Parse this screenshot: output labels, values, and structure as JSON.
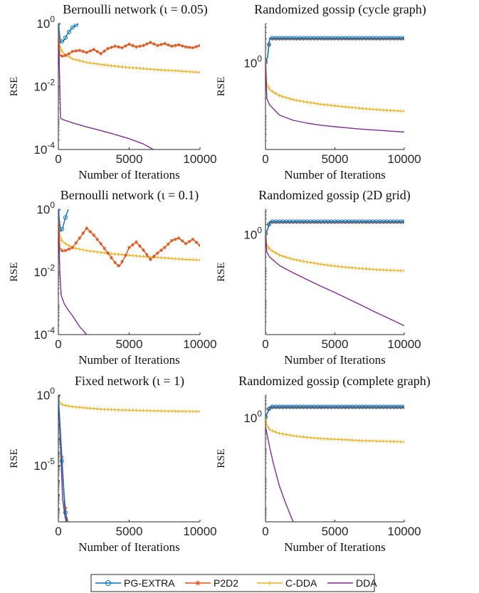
{
  "colors": {
    "PG-EXTRA": "#0072BD",
    "P2D2": "#D95319",
    "C-DDA": "#EDB120",
    "DDA": "#7E2F8E",
    "axis": "#262626"
  },
  "legend": {
    "entries": [
      {
        "name": "PG-EXTRA",
        "marker": "circle"
      },
      {
        "name": "P2D2",
        "marker": "asterisk"
      },
      {
        "name": "C-DDA",
        "marker": "plus"
      },
      {
        "name": "DDA",
        "marker": "none"
      }
    ]
  },
  "chart_data": [
    {
      "type": "line",
      "title": "Bernoulli network (ι = 0.05)",
      "xlabel": "Number of Iterations",
      "ylabel": "RSE",
      "yscale": "log",
      "xlim": [
        0,
        10000
      ],
      "ylim": [
        0.0001,
        1
      ],
      "xticks": [
        "0",
        "5000",
        "10000"
      ],
      "yticks": [
        {
          "value": 1,
          "base": "10",
          "exp": "0"
        },
        {
          "value": 0.01,
          "base": "10",
          "exp": "-2"
        },
        {
          "value": 0.0001,
          "base": "10",
          "exp": "-4"
        }
      ],
      "series": [
        {
          "name": "PG-EXTRA",
          "x": [
            0,
            150,
            400,
            700,
            1000,
            1400
          ],
          "y": [
            1.0,
            0.25,
            0.3,
            0.5,
            0.75,
            1.0
          ]
        },
        {
          "name": "P2D2",
          "x": [
            0,
            100,
            300,
            600,
            1000,
            1500,
            2000,
            2500,
            3000,
            3500,
            4000,
            4500,
            5000,
            5500,
            6000,
            6500,
            7000,
            7500,
            8000,
            8500,
            9000,
            9500,
            10000
          ],
          "y": [
            1.0,
            0.1,
            0.09,
            0.1,
            0.13,
            0.14,
            0.12,
            0.15,
            0.11,
            0.16,
            0.19,
            0.17,
            0.22,
            0.18,
            0.2,
            0.25,
            0.2,
            0.23,
            0.19,
            0.21,
            0.18,
            0.17,
            0.2
          ]
        },
        {
          "name": "C-DDA",
          "x": [
            0,
            100,
            300,
            1000,
            2000,
            3000,
            4000,
            5000,
            6000,
            7000,
            8000,
            9000,
            10000
          ],
          "y": [
            1.0,
            0.2,
            0.12,
            0.075,
            0.058,
            0.05,
            0.044,
            0.04,
            0.037,
            0.034,
            0.032,
            0.03,
            0.028
          ]
        },
        {
          "name": "DDA",
          "x": [
            0,
            150,
            300,
            1000,
            2000,
            3000,
            4000,
            5000,
            6000,
            6700
          ],
          "y": [
            1.0,
            0.001,
            0.0009,
            0.0007,
            0.00052,
            0.0004,
            0.0003,
            0.00022,
            0.00015,
            0.0001
          ]
        }
      ]
    },
    {
      "type": "line",
      "title": "Randomized gossip (cycle graph)",
      "xlabel": "Number of Iterations",
      "ylabel": "RSE",
      "yscale": "log",
      "xlim": [
        0,
        10000
      ],
      "ylim": [
        0.02,
        6
      ],
      "xticks": [
        "0",
        "5000",
        "10000"
      ],
      "yticks": [
        {
          "value": 1,
          "base": "10",
          "exp": "0"
        }
      ],
      "series": [
        {
          "name": "PG-EXTRA",
          "x": [
            0,
            150,
            300,
            600,
            1000,
            2000,
            3000,
            4000,
            5000,
            6000,
            7000,
            8000,
            9000,
            10000
          ],
          "y": [
            1.1,
            1.3,
            3.1,
            3.1,
            3.1,
            3.1,
            3.1,
            3.1,
            3.1,
            3.1,
            3.1,
            3.1,
            3.1,
            3.1
          ]
        },
        {
          "name": "P2D2",
          "x": [
            0,
            150,
            300,
            600,
            1000,
            2000,
            3000,
            4000,
            5000,
            6000,
            7000,
            8000,
            9000,
            10000
          ],
          "y": [
            1.1,
            1.3,
            3.0,
            3.0,
            3.0,
            3.0,
            3.0,
            3.0,
            3.0,
            3.0,
            3.0,
            3.0,
            3.0,
            3.0
          ]
        },
        {
          "name": "C-DDA",
          "x": [
            0,
            100,
            300,
            1000,
            2000,
            3000,
            4000,
            5000,
            6000,
            7000,
            8000,
            9000,
            10000
          ],
          "y": [
            1.1,
            0.4,
            0.3,
            0.23,
            0.19,
            0.17,
            0.155,
            0.145,
            0.135,
            0.128,
            0.122,
            0.117,
            0.113
          ]
        },
        {
          "name": "DDA",
          "x": [
            0,
            100,
            300,
            1000,
            2000,
            3000,
            4000,
            5000,
            6000,
            7000,
            8000,
            9000,
            10000
          ],
          "y": [
            1.1,
            0.2,
            0.15,
            0.095,
            0.075,
            0.066,
            0.06,
            0.056,
            0.053,
            0.05,
            0.048,
            0.046,
            0.044
          ]
        }
      ]
    },
    {
      "type": "line",
      "title": "Bernoulli network (ι = 0.1)",
      "xlabel": "Number of Iterations",
      "ylabel": "RSE",
      "yscale": "log",
      "xlim": [
        0,
        10000
      ],
      "ylim": [
        0.0001,
        1
      ],
      "xticks": [
        "0",
        "5000",
        "10000"
      ],
      "yticks": [
        {
          "value": 1,
          "base": "10",
          "exp": "0"
        },
        {
          "value": 0.01,
          "base": "10",
          "exp": "-2"
        },
        {
          "value": 0.0001,
          "base": "10",
          "exp": "-4"
        }
      ],
      "series": [
        {
          "name": "PG-EXTRA",
          "x": [
            0,
            150,
            300,
            500,
            700
          ],
          "y": [
            1.0,
            0.2,
            0.25,
            0.55,
            1.0
          ]
        },
        {
          "name": "P2D2",
          "x": [
            0,
            100,
            300,
            600,
            1000,
            1500,
            2000,
            2500,
            3000,
            3500,
            4000,
            4300,
            4700,
            5000,
            5500,
            6000,
            6500,
            7000,
            7500,
            8000,
            8500,
            9000,
            9500,
            10000
          ],
          "y": [
            1.0,
            0.06,
            0.045,
            0.05,
            0.06,
            0.12,
            0.25,
            0.15,
            0.08,
            0.04,
            0.02,
            0.015,
            0.03,
            0.06,
            0.09,
            0.05,
            0.025,
            0.04,
            0.06,
            0.1,
            0.12,
            0.08,
            0.11,
            0.07
          ]
        },
        {
          "name": "C-DDA",
          "x": [
            0,
            100,
            300,
            1000,
            2000,
            3000,
            4000,
            5000,
            6000,
            7000,
            8000,
            9000,
            10000
          ],
          "y": [
            1.0,
            0.15,
            0.09,
            0.06,
            0.048,
            0.042,
            0.037,
            0.034,
            0.031,
            0.029,
            0.027,
            0.025,
            0.024
          ]
        },
        {
          "name": "DDA",
          "x": [
            0,
            100,
            200,
            400,
            700,
            1000,
            1500,
            2000
          ],
          "y": [
            1.0,
            0.01,
            0.0018,
            0.001,
            0.0006,
            0.0004,
            0.00018,
            0.0001
          ]
        }
      ]
    },
    {
      "type": "line",
      "title": "Randomized gossip (2D grid)",
      "xlabel": "Number of Iterations",
      "ylabel": "RSE",
      "yscale": "log",
      "xlim": [
        0,
        10000
      ],
      "ylim": [
        0.0008,
        6
      ],
      "xticks": [
        "0",
        "5000",
        "10000"
      ],
      "yticks": [
        {
          "value": 1,
          "base": "10",
          "exp": "0"
        }
      ],
      "series": [
        {
          "name": "PG-EXTRA",
          "x": [
            0,
            150,
            300,
            600,
            1000,
            2000,
            3000,
            4000,
            5000,
            6000,
            7000,
            8000,
            9000,
            10000
          ],
          "y": [
            1.1,
            1.4,
            2.5,
            2.5,
            2.5,
            2.5,
            2.5,
            2.5,
            2.5,
            2.5,
            2.5,
            2.5,
            2.5,
            2.5
          ]
        },
        {
          "name": "P2D2",
          "x": [
            0,
            150,
            300,
            600,
            1000,
            2000,
            3000,
            4000,
            5000,
            6000,
            7000,
            8000,
            9000,
            10000
          ],
          "y": [
            1.1,
            1.4,
            2.4,
            2.4,
            2.4,
            2.4,
            2.4,
            2.4,
            2.4,
            2.4,
            2.4,
            2.4,
            2.4,
            2.4
          ]
        },
        {
          "name": "C-DDA",
          "x": [
            0,
            100,
            300,
            1000,
            2000,
            3000,
            4000,
            5000,
            6000,
            7000,
            8000,
            9000,
            10000
          ],
          "y": [
            1.1,
            0.5,
            0.35,
            0.23,
            0.17,
            0.14,
            0.12,
            0.105,
            0.095,
            0.088,
            0.082,
            0.078,
            0.075
          ]
        },
        {
          "name": "DDA",
          "x": [
            0,
            100,
            300,
            1000,
            2000,
            3000,
            4000,
            5000,
            6000,
            7000,
            8000,
            9000,
            10000
          ],
          "y": [
            1.1,
            0.28,
            0.2,
            0.11,
            0.065,
            0.04,
            0.025,
            0.016,
            0.01,
            0.0062,
            0.0038,
            0.0024,
            0.0015
          ]
        }
      ]
    },
    {
      "type": "line",
      "title": "Fixed network (ι = 1)",
      "xlabel": "Number of Iterations",
      "ylabel": "RSE",
      "yscale": "log",
      "xlim": [
        0,
        10000
      ],
      "ylim": [
        1e-09,
        1
      ],
      "xticks": [
        "0",
        "5000",
        "10000"
      ],
      "yticks": [
        {
          "value": 1,
          "base": "10",
          "exp": "0"
        },
        {
          "value": 1e-05,
          "base": "10",
          "exp": "-5"
        }
      ],
      "series": [
        {
          "name": "PG-EXTRA",
          "x": [
            0,
            150,
            300,
            450,
            600
          ],
          "y": [
            1.0,
            0.001,
            3e-06,
            1e-08,
            1e-09
          ]
        },
        {
          "name": "P2D2",
          "x": [
            0,
            200,
            400,
            550,
            700
          ],
          "y": [
            1.0,
            0.0003,
            1e-07,
            3e-09,
            1e-09
          ]
        },
        {
          "name": "C-DDA",
          "x": [
            0,
            100,
            300,
            1000,
            2000,
            3000,
            4000,
            5000,
            6000,
            7000,
            8000,
            9000,
            10000
          ],
          "y": [
            1.0,
            0.3,
            0.2,
            0.15,
            0.12,
            0.1,
            0.09,
            0.085,
            0.08,
            0.075,
            0.072,
            0.07,
            0.068
          ]
        },
        {
          "name": "DDA",
          "x": [
            0,
            150,
            300,
            450,
            550
          ],
          "y": [
            1.0,
            0.0002,
            4e-08,
            3e-09,
            1e-09
          ]
        }
      ]
    },
    {
      "type": "line",
      "title": "Randomized gossip (complete graph)",
      "xlabel": "Number of Iterations",
      "ylabel": "RSE",
      "yscale": "log",
      "xlim": [
        0,
        10000
      ],
      "ylim": [
        0.0003,
        6
      ],
      "xticks": [
        "0",
        "5000",
        "10000"
      ],
      "yticks": [
        {
          "value": 1,
          "base": "10",
          "exp": "0"
        }
      ],
      "series": [
        {
          "name": "PG-EXTRA",
          "x": [
            0,
            150,
            300,
            600,
            1000,
            2000,
            3000,
            4000,
            5000,
            6000,
            7000,
            8000,
            9000,
            10000
          ],
          "y": [
            1.1,
            1.5,
            2.4,
            2.4,
            2.4,
            2.4,
            2.4,
            2.4,
            2.4,
            2.4,
            2.4,
            2.4,
            2.4,
            2.4
          ]
        },
        {
          "name": "P2D2",
          "x": [
            0,
            150,
            300,
            600,
            1000,
            2000,
            3000,
            4000,
            5000,
            6000,
            7000,
            8000,
            9000,
            10000
          ],
          "y": [
            1.1,
            1.5,
            2.3,
            2.3,
            2.3,
            2.3,
            2.3,
            2.3,
            2.3,
            2.3,
            2.3,
            2.3,
            2.3,
            2.3
          ]
        },
        {
          "name": "C-DDA",
          "x": [
            0,
            100,
            300,
            1000,
            2000,
            3000,
            4000,
            5000,
            6000,
            7000,
            8000,
            9000,
            10000
          ],
          "y": [
            1.1,
            0.6,
            0.4,
            0.3,
            0.25,
            0.22,
            0.2,
            0.19,
            0.18,
            0.17,
            0.165,
            0.16,
            0.155
          ]
        },
        {
          "name": "DDA",
          "x": [
            0,
            100,
            300,
            600,
            1000,
            1400,
            1800,
            2000
          ],
          "y": [
            0.5,
            0.3,
            0.1,
            0.025,
            0.005,
            0.0015,
            0.0005,
            0.0003
          ]
        }
      ]
    }
  ]
}
